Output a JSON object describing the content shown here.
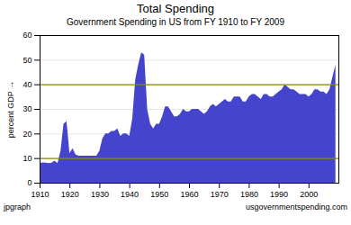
{
  "chart_data": {
    "type": "area",
    "title": "Total Spending",
    "subtitle": "Government Spending in US from FY 1910 to FY 2009",
    "ylabel": "percent GDP",
    "annotations": [
      "jpgraph",
      "usgovernmentspending.com"
    ],
    "x": [
      1910,
      1911,
      1912,
      1913,
      1914,
      1915,
      1916,
      1917,
      1918,
      1919,
      1920,
      1921,
      1922,
      1923,
      1924,
      1925,
      1926,
      1927,
      1928,
      1929,
      1930,
      1931,
      1932,
      1933,
      1934,
      1935,
      1936,
      1937,
      1938,
      1939,
      1940,
      1941,
      1942,
      1943,
      1944,
      1945,
      1946,
      1947,
      1948,
      1949,
      1950,
      1951,
      1952,
      1953,
      1954,
      1955,
      1956,
      1957,
      1958,
      1959,
      1960,
      1961,
      1962,
      1963,
      1964,
      1965,
      1966,
      1967,
      1968,
      1969,
      1970,
      1971,
      1972,
      1973,
      1974,
      1975,
      1976,
      1977,
      1978,
      1979,
      1980,
      1981,
      1982,
      1983,
      1984,
      1985,
      1986,
      1987,
      1988,
      1989,
      1990,
      1991,
      1992,
      1993,
      1994,
      1995,
      1996,
      1997,
      1998,
      1999,
      2000,
      2001,
      2002,
      2003,
      2004,
      2005,
      2006,
      2007,
      2008,
      2009
    ],
    "values": [
      8.0,
      8.2,
      8.1,
      8.0,
      8.1,
      9.0,
      8.0,
      13.0,
      24.0,
      25.0,
      12.0,
      14.0,
      11.5,
      11.0,
      11.0,
      11.0,
      11.0,
      11.0,
      11.0,
      11.0,
      13.0,
      18.0,
      20.0,
      20.0,
      21.0,
      21.0,
      22.0,
      19.0,
      20.0,
      20.0,
      19.0,
      26.0,
      42.0,
      48.0,
      53.0,
      52.0,
      30.0,
      24.0,
      22.0,
      24.0,
      24.0,
      27.0,
      31.0,
      31.0,
      29.0,
      27.0,
      27.0,
      28.0,
      30.0,
      29.0,
      29.0,
      30.0,
      30.0,
      30.0,
      29.0,
      28.0,
      29.0,
      31.0,
      32.0,
      31.0,
      32.0,
      33.0,
      34.0,
      33.0,
      33.0,
      35.0,
      35.0,
      35.0,
      33.0,
      33.0,
      35.0,
      36.0,
      36.0,
      35.0,
      34.0,
      36.0,
      36.0,
      35.0,
      35.0,
      36.0,
      37.0,
      38.0,
      40.0,
      39.0,
      38.0,
      38.0,
      37.0,
      36.0,
      36.0,
      36.0,
      35.0,
      36.0,
      38.0,
      38.0,
      37.0,
      37.0,
      36.0,
      38.0,
      43.0,
      48.0
    ],
    "color": "#4444cc",
    "reference_lines": [
      {
        "value": 10,
        "color": "#8B8B00"
      },
      {
        "value": 40,
        "color": "#8B8B00"
      }
    ],
    "xlim": [
      1910,
      2010
    ],
    "xticks": [
      1910,
      1920,
      1930,
      1940,
      1950,
      1960,
      1970,
      1980,
      1990,
      2000
    ],
    "ylim": [
      0,
      60
    ],
    "yticks": [
      0,
      10,
      20,
      30,
      40,
      50,
      60
    ],
    "grid": true
  }
}
